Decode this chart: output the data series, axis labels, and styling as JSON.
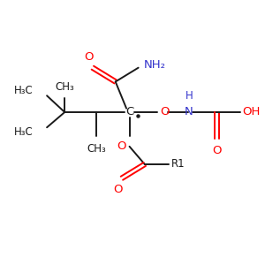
{
  "background_color": "#ffffff",
  "bond_color": "#1a1a1a",
  "oxygen_color": "#ff0000",
  "nitrogen_color": "#3333cc",
  "carbon_color": "#1a1a1a",
  "figsize": [
    3.0,
    3.0
  ],
  "dpi": 100,
  "xlim": [
    0,
    10
  ],
  "ylim": [
    0,
    10
  ]
}
